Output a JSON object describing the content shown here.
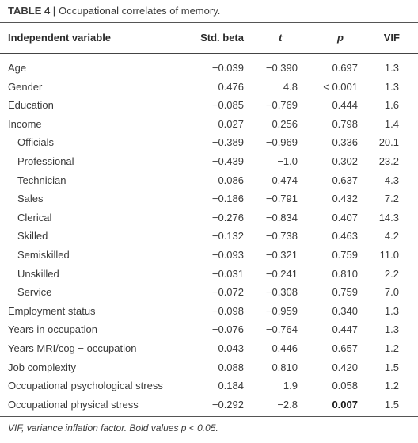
{
  "caption": {
    "label": "TABLE 4",
    "separator": "|",
    "title": "Occupational correlates of memory."
  },
  "headers": {
    "variable": "Independent variable",
    "beta": "Std. beta",
    "t": "t",
    "p": "p",
    "vif": "VIF"
  },
  "rows": [
    {
      "variable": "Age",
      "beta": "−0.039",
      "t": "−0.390",
      "p": "0.697",
      "vif": "1.3",
      "sub": false,
      "p_bold": false
    },
    {
      "variable": "Gender",
      "beta": "0.476",
      "t": "4.8",
      "p": "< 0.001",
      "vif": "1.3",
      "sub": false,
      "p_bold": false
    },
    {
      "variable": "Education",
      "beta": "−0.085",
      "t": "−0.769",
      "p": "0.444",
      "vif": "1.6",
      "sub": false,
      "p_bold": false
    },
    {
      "variable": "Income",
      "beta": "0.027",
      "t": "0.256",
      "p": "0.798",
      "vif": "1.4",
      "sub": false,
      "p_bold": false
    },
    {
      "variable": "Officials",
      "beta": "−0.389",
      "t": "−0.969",
      "p": "0.336",
      "vif": "20.1",
      "sub": true,
      "p_bold": false
    },
    {
      "variable": "Professional",
      "beta": "−0.439",
      "t": "−1.0",
      "p": "0.302",
      "vif": "23.2",
      "sub": true,
      "p_bold": false
    },
    {
      "variable": "Technician",
      "beta": "0.086",
      "t": "0.474",
      "p": "0.637",
      "vif": "4.3",
      "sub": true,
      "p_bold": false
    },
    {
      "variable": "Sales",
      "beta": "−0.186",
      "t": "−0.791",
      "p": "0.432",
      "vif": "7.2",
      "sub": true,
      "p_bold": false
    },
    {
      "variable": "Clerical",
      "beta": "−0.276",
      "t": "−0.834",
      "p": "0.407",
      "vif": "14.3",
      "sub": true,
      "p_bold": false
    },
    {
      "variable": "Skilled",
      "beta": "−0.132",
      "t": "−0.738",
      "p": "0.463",
      "vif": "4.2",
      "sub": true,
      "p_bold": false
    },
    {
      "variable": "Semiskilled",
      "beta": "−0.093",
      "t": "−0.321",
      "p": "0.759",
      "vif": "11.0",
      "sub": true,
      "p_bold": false
    },
    {
      "variable": "Unskilled",
      "beta": "−0.031",
      "t": "−0.241",
      "p": "0.810",
      "vif": "2.2",
      "sub": true,
      "p_bold": false
    },
    {
      "variable": "Service",
      "beta": "−0.072",
      "t": "−0.308",
      "p": "0.759",
      "vif": "7.0",
      "sub": true,
      "p_bold": false
    },
    {
      "variable": "Employment status",
      "beta": "−0.098",
      "t": "−0.959",
      "p": "0.340",
      "vif": "1.3",
      "sub": false,
      "p_bold": false
    },
    {
      "variable": "Years in occupation",
      "beta": "−0.076",
      "t": "−0.764",
      "p": "0.447",
      "vif": "1.3",
      "sub": false,
      "p_bold": false
    },
    {
      "variable": "Years MRI/cog − occupation",
      "beta": "0.043",
      "t": "0.446",
      "p": "0.657",
      "vif": "1.2",
      "sub": false,
      "p_bold": false
    },
    {
      "variable": "Job complexity",
      "beta": "0.088",
      "t": "0.810",
      "p": "0.420",
      "vif": "1.5",
      "sub": false,
      "p_bold": false
    },
    {
      "variable": "Occupational psychological stress",
      "beta": "0.184",
      "t": "1.9",
      "p": "0.058",
      "vif": "1.2",
      "sub": false,
      "p_bold": false
    },
    {
      "variable": "Occupational physical stress",
      "beta": "−0.292",
      "t": "−2.8",
      "p": "0.007",
      "vif": "1.5",
      "sub": false,
      "p_bold": true
    }
  ],
  "footnote": "VIF, variance inflation factor. Bold values p < 0.05."
}
